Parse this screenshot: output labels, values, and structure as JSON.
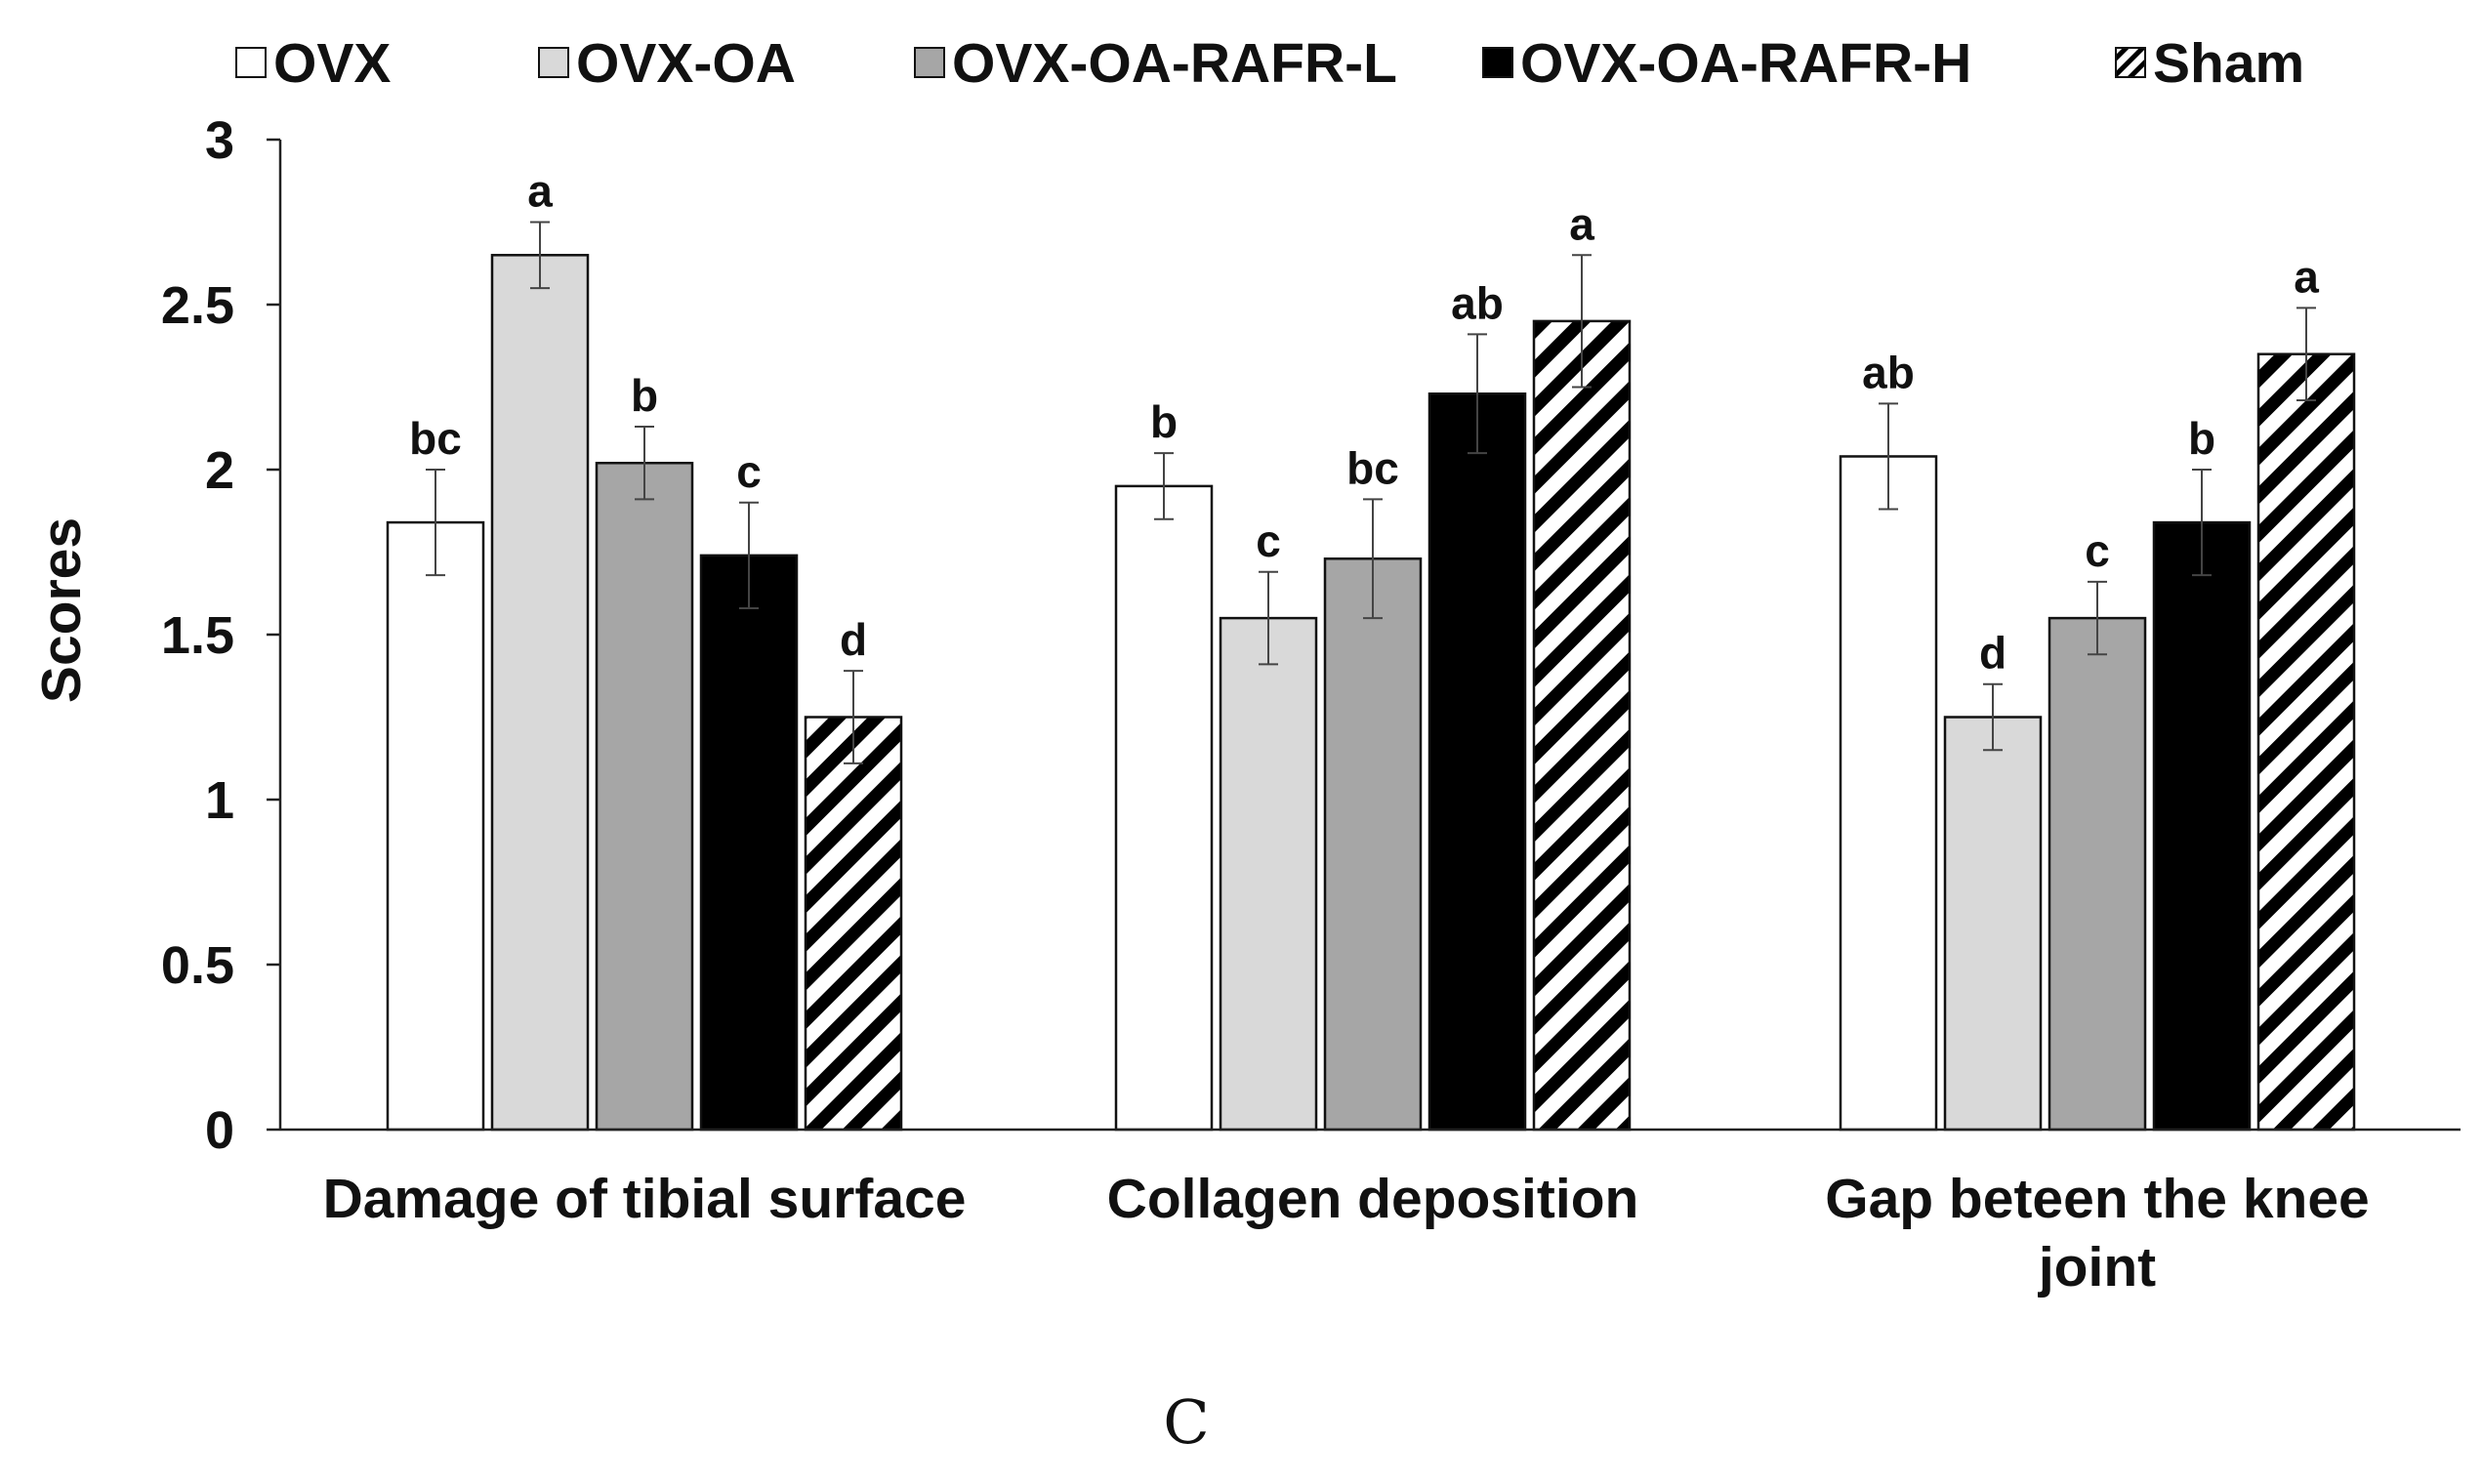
{
  "chart_data": {
    "type": "bar",
    "ylabel": "Scores",
    "ylim": [
      0,
      3
    ],
    "yticks": [
      "0",
      "0.5",
      "1",
      "1.5",
      "2",
      "2.5",
      "3"
    ],
    "categories": [
      [
        "Damage of tibial surface"
      ],
      [
        "Collagen deposition"
      ],
      [
        "Gap beteen the knee",
        "joint"
      ]
    ],
    "legend_position": "top",
    "series": [
      {
        "name": "OVX",
        "fill": "#ffffff",
        "pattern": "solid",
        "values": [
          1.84,
          1.95,
          2.04
        ],
        "errors": [
          0.16,
          0.1,
          0.16
        ],
        "labels": [
          "bc",
          "b",
          "ab"
        ]
      },
      {
        "name": "OVX-OA",
        "fill": "#d9d9d9",
        "pattern": "solid",
        "values": [
          2.65,
          1.55,
          1.25
        ],
        "errors": [
          0.1,
          0.14,
          0.1
        ],
        "labels": [
          "a",
          "c",
          "d"
        ]
      },
      {
        "name": "OVX-OA-RAFR-L",
        "fill": "#a6a6a6",
        "pattern": "solid",
        "values": [
          2.02,
          1.73,
          1.55
        ],
        "errors": [
          0.11,
          0.18,
          0.11
        ],
        "labels": [
          "b",
          "bc",
          "c"
        ]
      },
      {
        "name": "OVX-OA-RAFR-H",
        "fill": "#000000",
        "pattern": "solid",
        "values": [
          1.74,
          2.23,
          1.84
        ],
        "errors": [
          0.16,
          0.18,
          0.16
        ],
        "labels": [
          "c",
          "ab",
          "b"
        ]
      },
      {
        "name": "Sham",
        "fill": "#ffffff",
        "pattern": "diagonal-stripes",
        "values": [
          1.25,
          2.45,
          2.35
        ],
        "errors": [
          0.14,
          0.2,
          0.14
        ],
        "labels": [
          "d",
          "a",
          "a"
        ]
      }
    ],
    "panel_label": "C"
  }
}
